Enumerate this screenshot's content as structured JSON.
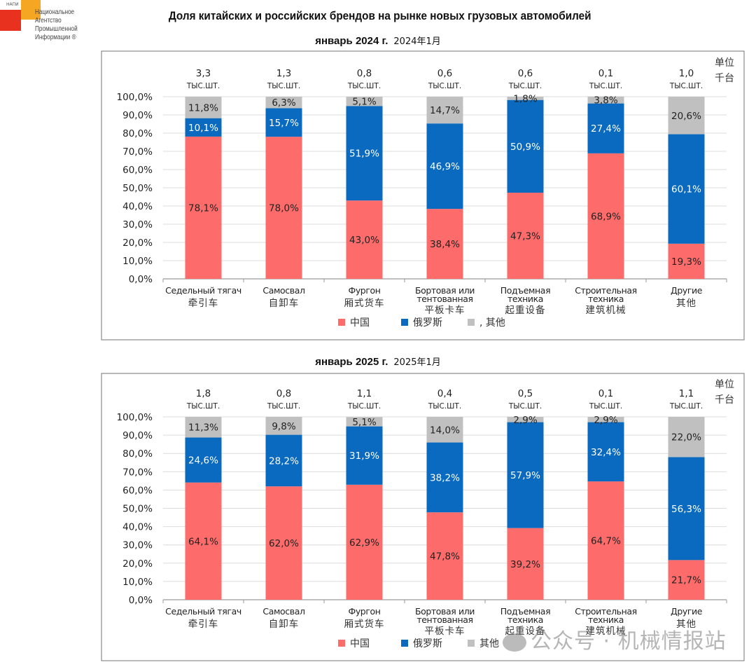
{
  "logo": {
    "tag": "НАПИ",
    "lines": [
      "Национальное",
      "Агентство",
      "Промышленной",
      "Информации ®"
    ]
  },
  "title": "Доля китайских и российских брендов на рынке новых грузовых автомобилей",
  "unit_label": [
    "单位",
    "千台"
  ],
  "watermark": "公众号 · 机械情报站",
  "colors": {
    "china": "#fd6b6b",
    "russia": "#0a6abf",
    "other": "#c0c0c0"
  },
  "chart_data": [
    {
      "type": "bar",
      "stacked": true,
      "title": "январь 2024 г.",
      "title_cn": "2024年1月",
      "ylabel": "",
      "xlabel": "",
      "ylim": [
        0,
        100
      ],
      "yticks": [
        "0,0%",
        "10,0%",
        "20,0%",
        "30,0%",
        "40,0%",
        "50,0%",
        "60,0%",
        "70,0%",
        "80,0%",
        "90,0%",
        "100,0%"
      ],
      "grid": true,
      "legend_position": "bottom",
      "categories": [
        {
          "ru": [
            "Седельный тягач"
          ],
          "cn": "牵引车"
        },
        {
          "ru": [
            "Самосвал"
          ],
          "cn": "自卸车"
        },
        {
          "ru": [
            "Фургон"
          ],
          "cn": "厢式货车"
        },
        {
          "ru": [
            "Бортовая или",
            "тентованная"
          ],
          "cn": "平板卡车"
        },
        {
          "ru": [
            "Подъемная",
            "техника"
          ],
          "cn": "起重设备"
        },
        {
          "ru": [
            "Строительная",
            "техника"
          ],
          "cn": "建筑机械"
        },
        {
          "ru": [
            "Другие"
          ],
          "cn": "其他"
        }
      ],
      "totals": [
        "3,3",
        "1,3",
        "0,8",
        "0,6",
        "0,6",
        "0,1",
        "1,0"
      ],
      "total_unit": "ТЫС.ШТ.",
      "series": [
        {
          "name": "中国",
          "key": "china",
          "values": [
            78.1,
            78.0,
            43.0,
            38.4,
            47.3,
            68.9,
            19.3
          ],
          "labels": [
            "78,1%",
            "78,0%",
            "43,0%",
            "38,4%",
            "47,3%",
            "68,9%",
            "19,3%"
          ]
        },
        {
          "name": "俄罗斯",
          "key": "russia",
          "values": [
            10.1,
            15.7,
            51.9,
            46.9,
            50.9,
            27.4,
            60.1
          ],
          "labels": [
            "10,1%",
            "15,7%",
            "51,9%",
            "46,9%",
            "50,9%",
            "27,4%",
            "60,1%"
          ]
        },
        {
          "name": "其他",
          "key": "other",
          "values": [
            11.8,
            6.3,
            5.1,
            14.7,
            1.8,
            3.8,
            20.6
          ],
          "labels": [
            "11,8%",
            "6,3%",
            "5,1%",
            "14,7%",
            "1,8%",
            "3,8%",
            "20,6%"
          ]
        }
      ],
      "legend": [
        "中国",
        "俄罗斯",
        ", 其他"
      ]
    },
    {
      "type": "bar",
      "stacked": true,
      "title": "январь 2025 г.",
      "title_cn": "2025年1月",
      "ylabel": "",
      "xlabel": "",
      "ylim": [
        0,
        100
      ],
      "yticks": [
        "0,0%",
        "10,0%",
        "20,0%",
        "30,0%",
        "40,0%",
        "50,0%",
        "60,0%",
        "70,0%",
        "80,0%",
        "90,0%",
        "100,0%"
      ],
      "grid": true,
      "legend_position": "bottom",
      "categories": [
        {
          "ru": [
            "Седельный тягач"
          ],
          "cn": "牵引车"
        },
        {
          "ru": [
            "Самосвал"
          ],
          "cn": "自卸车"
        },
        {
          "ru": [
            "Фургон"
          ],
          "cn": "厢式货车"
        },
        {
          "ru": [
            "Бортовая или",
            "тентованная"
          ],
          "cn": "平板卡车"
        },
        {
          "ru": [
            "Подъемная",
            "техника"
          ],
          "cn": "起重设备"
        },
        {
          "ru": [
            "Строительная",
            "техника"
          ],
          "cn": "建筑机械"
        },
        {
          "ru": [
            "Другие"
          ],
          "cn": "其他"
        }
      ],
      "totals": [
        "1,8",
        "0,8",
        "1,1",
        "0,4",
        "0,5",
        "0,1",
        "1,1"
      ],
      "total_unit": "ТЫС.ШТ.",
      "series": [
        {
          "name": "中国",
          "key": "china",
          "values": [
            64.1,
            62.0,
            62.9,
            47.8,
            39.2,
            64.7,
            21.7
          ],
          "labels": [
            "64,1%",
            "62,0%",
            "62,9%",
            "47,8%",
            "39,2%",
            "64,7%",
            "21,7%"
          ]
        },
        {
          "name": "俄罗斯",
          "key": "russia",
          "values": [
            24.6,
            28.2,
            31.9,
            38.2,
            57.9,
            32.4,
            56.3
          ],
          "labels": [
            "24,6%",
            "28,2%",
            "31,9%",
            "38,2%",
            "57,9%",
            "32,4%",
            "56,3%"
          ]
        },
        {
          "name": "其他",
          "key": "other",
          "values": [
            11.3,
            9.8,
            5.1,
            14.0,
            2.9,
            2.9,
            22.0
          ],
          "labels": [
            "11,3%",
            "9,8%",
            "5,1%",
            "14,0%",
            "2,9%",
            "2,9%",
            "22,0%"
          ]
        }
      ],
      "legend": [
        "中国",
        "俄罗斯",
        "其他"
      ]
    }
  ]
}
